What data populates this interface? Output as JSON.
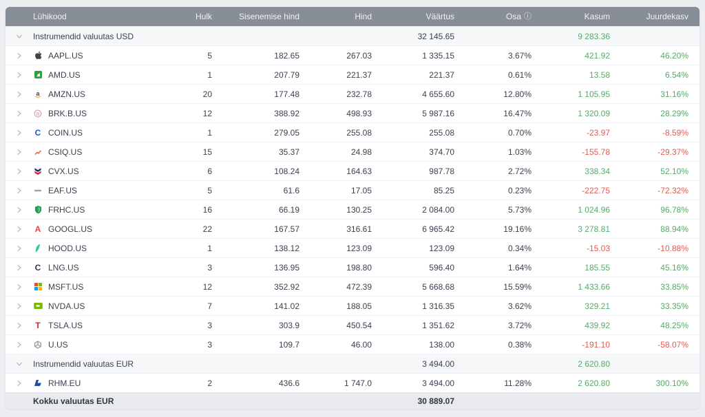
{
  "colors": {
    "positive": "#57a868",
    "negative": "#e25a52",
    "header_bg": "#878e98",
    "header_text": "#f1f2f4",
    "row_bg": "#ffffff",
    "group_row_bg": "#f6f7f9",
    "footer_bg": "#e8eaee",
    "text": "#3a4150"
  },
  "table": {
    "columns": [
      {
        "label": "Lühikood"
      },
      {
        "label": "Hulk"
      },
      {
        "label": "Sisenemise hind"
      },
      {
        "label": "Hind"
      },
      {
        "label": "Väärtus"
      },
      {
        "label": "Osa",
        "info_icon": "info-circle-icon"
      },
      {
        "label": "Kasum"
      },
      {
        "label": "Juurdekasv"
      }
    ],
    "groups": [
      {
        "label": "Instrumendid valuutas USD",
        "value": "32 145.65",
        "profit": "9 283.36",
        "rows": [
          {
            "ticker": "AAPL.US",
            "icon": "apple-logo",
            "qty": "5",
            "entry": "182.65",
            "price": "267.03",
            "value": "1 335.15",
            "share": "3.67%",
            "profit": "421.92",
            "growth": "46.20%",
            "trend": "up"
          },
          {
            "ticker": "AMD.US",
            "icon": "amd-logo",
            "qty": "1",
            "entry": "207.79",
            "price": "221.37",
            "value": "221.37",
            "share": "0.61%",
            "profit": "13.58",
            "growth": "6.54%",
            "trend": "up"
          },
          {
            "ticker": "AMZN.US",
            "icon": "amazon-logo",
            "qty": "20",
            "entry": "177.48",
            "price": "232.78",
            "value": "4 655.60",
            "share": "12.80%",
            "profit": "1 105.95",
            "growth": "31.16%",
            "trend": "up"
          },
          {
            "ticker": "BRK.B.US",
            "icon": "berkshire-logo",
            "qty": "12",
            "entry": "388.92",
            "price": "498.93",
            "value": "5 987.16",
            "share": "16.47%",
            "profit": "1 320.09",
            "growth": "28.29%",
            "trend": "up"
          },
          {
            "ticker": "COIN.US",
            "icon": "coinbase-logo",
            "qty": "1",
            "entry": "279.05",
            "price": "255.08",
            "value": "255.08",
            "share": "0.70%",
            "profit": "-23.97",
            "growth": "-8.59%",
            "trend": "down"
          },
          {
            "ticker": "CSIQ.US",
            "icon": "csiq-logo",
            "qty": "15",
            "entry": "35.37",
            "price": "24.98",
            "value": "374.70",
            "share": "1.03%",
            "profit": "-155.78",
            "growth": "-29.37%",
            "trend": "down"
          },
          {
            "ticker": "CVX.US",
            "icon": "chevron-logo",
            "qty": "6",
            "entry": "108.24",
            "price": "164.63",
            "value": "987.78",
            "share": "2.72%",
            "profit": "338.34",
            "growth": "52.10%",
            "trend": "up"
          },
          {
            "ticker": "EAF.US",
            "icon": "graftech-logo",
            "qty": "5",
            "entry": "61.6",
            "price": "17.05",
            "value": "85.25",
            "share": "0.23%",
            "profit": "-222.75",
            "growth": "-72.32%",
            "trend": "down"
          },
          {
            "ticker": "FRHC.US",
            "icon": "freedom-logo",
            "qty": "16",
            "entry": "66.19",
            "price": "130.25",
            "value": "2 084.00",
            "share": "5.73%",
            "profit": "1 024.96",
            "growth": "96.78%",
            "trend": "up"
          },
          {
            "ticker": "GOOGL.US",
            "icon": "alphabet-logo",
            "qty": "22",
            "entry": "167.57",
            "price": "316.61",
            "value": "6 965.42",
            "share": "19.16%",
            "profit": "3 278.81",
            "growth": "88.94%",
            "trend": "up"
          },
          {
            "ticker": "HOOD.US",
            "icon": "robinhood-logo",
            "qty": "1",
            "entry": "138.12",
            "price": "123.09",
            "value": "123.09",
            "share": "0.34%",
            "profit": "-15.03",
            "growth": "-10.88%",
            "trend": "down"
          },
          {
            "ticker": "LNG.US",
            "icon": "cheniere-logo",
            "qty": "3",
            "entry": "136.95",
            "price": "198.80",
            "value": "596.40",
            "share": "1.64%",
            "profit": "185.55",
            "growth": "45.16%",
            "trend": "up"
          },
          {
            "ticker": "MSFT.US",
            "icon": "microsoft-logo",
            "qty": "12",
            "entry": "352.92",
            "price": "472.39",
            "value": "5 668.68",
            "share": "15.59%",
            "profit": "1 433.66",
            "growth": "33.85%",
            "trend": "up"
          },
          {
            "ticker": "NVDA.US",
            "icon": "nvidia-logo",
            "qty": "7",
            "entry": "141.02",
            "price": "188.05",
            "value": "1 316.35",
            "share": "3.62%",
            "profit": "329.21",
            "growth": "33.35%",
            "trend": "up"
          },
          {
            "ticker": "TSLA.US",
            "icon": "tesla-logo",
            "qty": "3",
            "entry": "303.9",
            "price": "450.54",
            "value": "1 351.62",
            "share": "3.72%",
            "profit": "439.92",
            "growth": "48.25%",
            "trend": "up"
          },
          {
            "ticker": "U.US",
            "icon": "unity-logo",
            "qty": "3",
            "entry": "109.7",
            "price": "46.00",
            "value": "138.00",
            "share": "0.38%",
            "profit": "-191.10",
            "growth": "-58.07%",
            "trend": "down"
          }
        ]
      },
      {
        "label": "Instrumendid valuutas EUR",
        "value": "3 494.00",
        "profit": "2 620.80",
        "rows": [
          {
            "ticker": "RHM.EU",
            "icon": "rheinmetall-logo",
            "qty": "2",
            "entry": "436.6",
            "price": "1 747.0",
            "value": "3 494.00",
            "share": "11.28%",
            "profit": "2 620.80",
            "growth": "300.10%",
            "trend": "up"
          }
        ]
      }
    ],
    "footer": {
      "label": "Kokku valuutas EUR",
      "value": "30 889.07"
    }
  }
}
